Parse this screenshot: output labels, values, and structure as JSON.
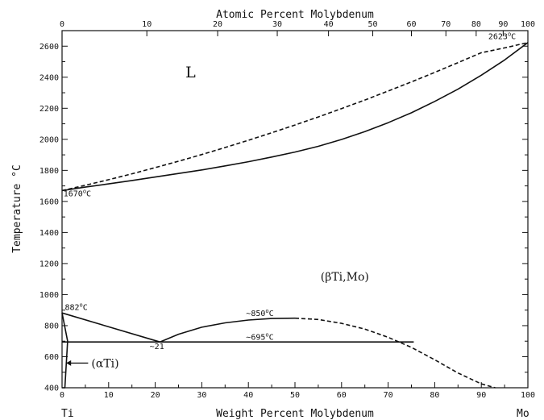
{
  "chart_data": {
    "type": "line",
    "title": "",
    "xlabel": "Weight Percent Molybdenum",
    "x2label": "Atomic Percent Molybdenum",
    "ylabel": "Temperature °C",
    "xlim": [
      0,
      100
    ],
    "ylim": [
      400,
      2700
    ],
    "x_ticks": [
      "0",
      "10",
      "20",
      "30",
      "40",
      "50",
      "60",
      "70",
      "80",
      "90",
      "100"
    ],
    "x2_ticks": [
      "0",
      "10",
      "20",
      "30",
      "40",
      "50",
      "60",
      "70",
      "80",
      "90",
      "100"
    ],
    "y_ticks": [
      "400",
      "600",
      "800",
      "1000",
      "1200",
      "1400",
      "1600",
      "1800",
      "2000",
      "2200",
      "2400",
      "2600"
    ],
    "x2_tick_wt_positions": [
      0,
      18.2,
      33.4,
      46.2,
      57.2,
      66.7,
      75.0,
      82.4,
      88.9,
      94.7,
      100
    ],
    "grid": false,
    "elements": [
      "Ti",
      "Mo"
    ],
    "series": [
      {
        "style": "solid",
        "x": [
          0,
          5,
          10,
          15,
          20,
          25,
          30,
          35,
          40,
          45,
          50,
          55,
          60,
          65,
          70,
          75,
          80,
          85,
          90,
          95,
          100
        ],
        "y": [
          1670,
          1692,
          1713,
          1735,
          1757,
          1780,
          1803,
          1829,
          1856,
          1886,
          1918,
          1955,
          1999,
          2050,
          2107,
          2171,
          2244,
          2323,
          2413,
          2511,
          2623
        ]
      },
      {
        "style": "dashed",
        "x": [
          0,
          5,
          10,
          15,
          20,
          25,
          30,
          35,
          40,
          45,
          50,
          55,
          60,
          65,
          70,
          75,
          80,
          85,
          90,
          95,
          100
        ],
        "y": [
          1670,
          1704,
          1740,
          1778,
          1818,
          1859,
          1902,
          1947,
          1994,
          2042,
          2092,
          2144,
          2198,
          2253,
          2311,
          2370,
          2431,
          2494,
          2558,
          2589,
          2623
        ]
      },
      {
        "style": "solid",
        "x": [
          0,
          21
        ],
        "y": [
          882,
          695
        ]
      },
      {
        "style": "solid",
        "x": [
          21,
          25,
          30,
          35,
          40,
          45,
          50
        ],
        "y": [
          695,
          745,
          790,
          818,
          836,
          846,
          848
        ]
      },
      {
        "style": "dashed",
        "x": [
          50,
          55,
          60,
          65,
          70,
          75,
          80,
          85,
          90,
          93
        ],
        "y": [
          848,
          840,
          815,
          778,
          725,
          660,
          580,
          495,
          425,
          400
        ]
      },
      {
        "style": "solid",
        "x": [
          0,
          75.5
        ],
        "y": [
          695,
          695
        ]
      },
      {
        "style": "solid",
        "x": [
          0,
          1.2,
          0.6,
          0
        ],
        "y": [
          882,
          700,
          400,
          400
        ]
      }
    ],
    "annotations": [
      {
        "text": "2623",
        "sup": "o",
        "unit": "C",
        "x": 91.5,
        "y": 2645
      },
      {
        "text": "1670",
        "sup": "o",
        "unit": "C",
        "x": 0.3,
        "y": 1633
      },
      {
        "text": "882",
        "sup": "o",
        "unit": "C",
        "x": 0.6,
        "y": 902
      },
      {
        "text": "~850",
        "sup": "o",
        "unit": "C",
        "x": 39.5,
        "y": 862
      },
      {
        "text": "~695",
        "sup": "o",
        "unit": "C",
        "x": 39.5,
        "y": 710
      },
      {
        "text": "~21",
        "sup": "",
        "unit": "",
        "x": 18.8,
        "y": 650
      }
    ],
    "regions": [
      {
        "label": "L",
        "x": 26.5,
        "y": 2400
      },
      {
        "label": "(βTi,Mo)",
        "x": 55.5,
        "y": 1090
      },
      {
        "label": "(αTi)",
        "x": 6.3,
        "y": 533
      }
    ]
  }
}
